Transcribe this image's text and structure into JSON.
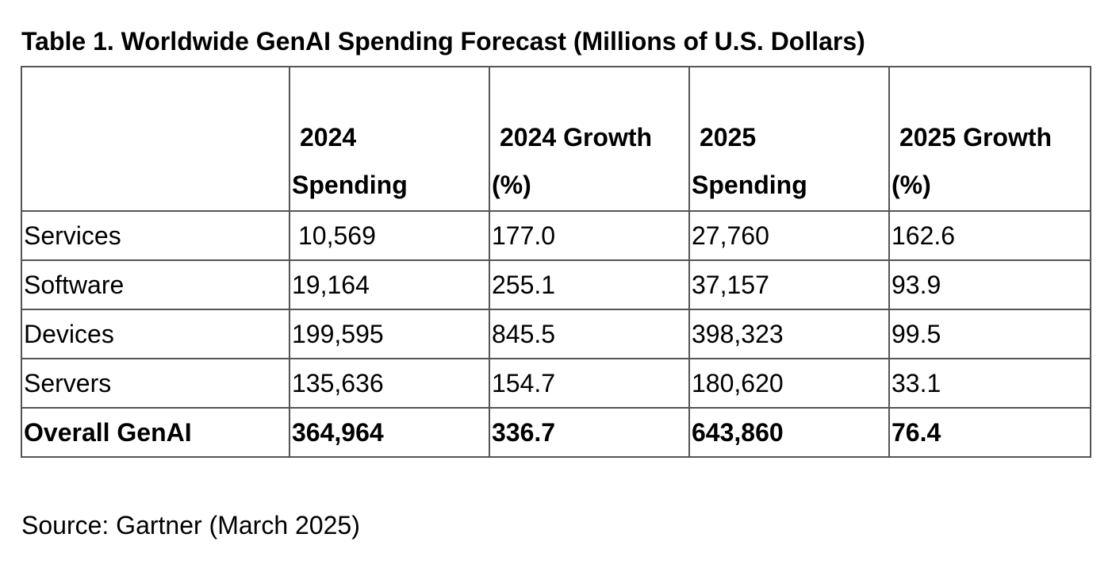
{
  "title": "Table 1. Worldwide GenAI Spending Forecast (Millions of U.S. Dollars)",
  "table": {
    "headers": [
      {
        "line1": "",
        "line2": ""
      },
      {
        "line1": "2024",
        "line2": "Spending"
      },
      {
        "line1": "2024 Growth",
        "line2": "(%)"
      },
      {
        "line1": "2025",
        "line2": "Spending"
      },
      {
        "line1": "2025 Growth",
        "line2": "(%)"
      }
    ],
    "rows": [
      {
        "label": "Services",
        "spend_2024": "10,569",
        "growth_2024": "177.0",
        "spend_2025": "27,760",
        "growth_2025": "162.6"
      },
      {
        "label": "Software",
        "spend_2024": "19,164",
        "growth_2024": "255.1",
        "spend_2025": "37,157",
        "growth_2025": "93.9"
      },
      {
        "label": "Devices",
        "spend_2024": "199,595",
        "growth_2024": "845.5",
        "spend_2025": "398,323",
        "growth_2025": "99.5"
      },
      {
        "label": "Servers",
        "spend_2024": "135,636",
        "growth_2024": "154.7",
        "spend_2025": "180,620",
        "growth_2025": "33.1"
      }
    ],
    "total": {
      "label": "Overall GenAI",
      "spend_2024": "364,964",
      "growth_2024": "336.7",
      "spend_2025": "643,860",
      "growth_2025": "76.4"
    }
  },
  "source": "Source: Gartner (March 2025)"
}
